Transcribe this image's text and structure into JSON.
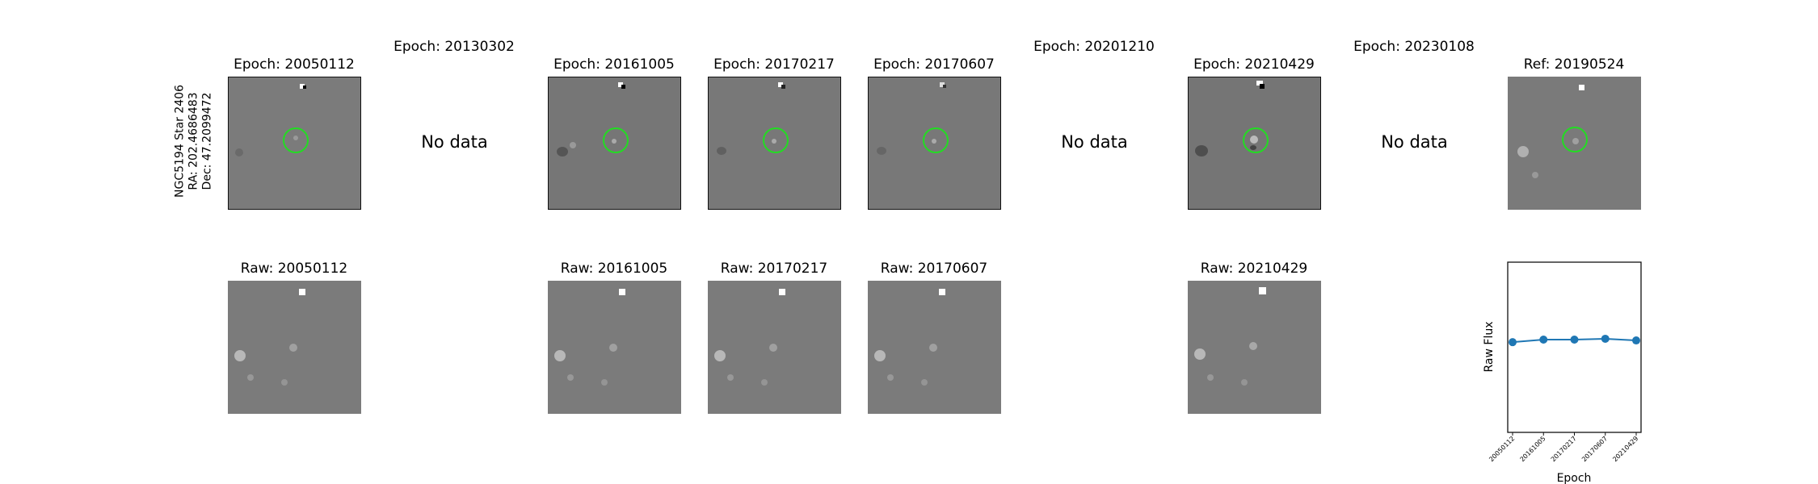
{
  "star_label": {
    "line1": "NGC5194 Star 2406",
    "line2": "RA: 202.4686483",
    "line3": "Dec: 47.2099472"
  },
  "top_titles": [
    "Epoch: 20050112",
    "Epoch: 20130302",
    "Epoch: 20161005",
    "Epoch: 20170217",
    "Epoch: 20170607",
    "Epoch: 20201210",
    "Epoch: 20210429",
    "Epoch: 20230108",
    "Ref: 20190524"
  ],
  "no_data_text": "No data",
  "bottom_titles": [
    "Raw: 20050112",
    "Raw: 20161005",
    "Raw: 20170217",
    "Raw: 20170607",
    "Raw: 20210429"
  ],
  "chart_data": {
    "type": "line",
    "x": [
      "20050112",
      "20161005",
      "20170217",
      "20170607",
      "20210429"
    ],
    "series": [
      {
        "values": [
          0.53,
          0.545,
          0.545,
          0.55,
          0.54
        ]
      }
    ],
    "ylim": [
      0,
      1
    ],
    "xlabel": "Epoch",
    "ylabel": "Raw Flux",
    "color": "#1f77b4"
  }
}
